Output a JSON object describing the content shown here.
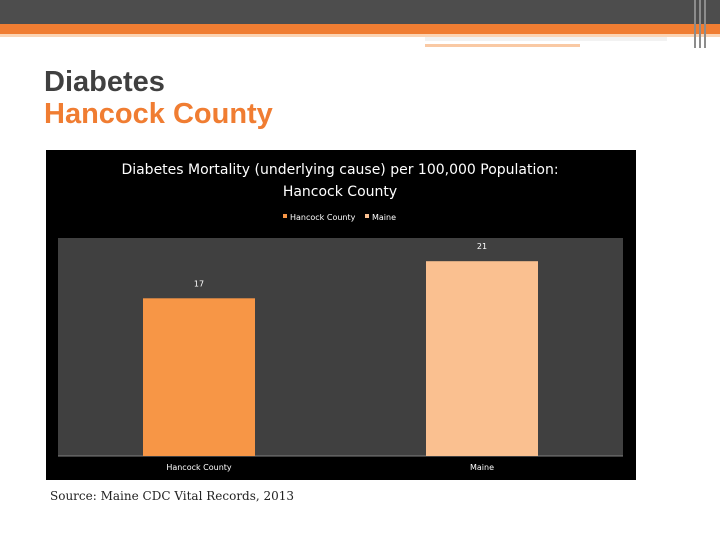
{
  "slide": {
    "title_line1": "Diabetes",
    "title_line2": "Hancock County",
    "source": "Source: Maine CDC Vital Records, 2013"
  },
  "colors": {
    "accent": "#f07d32",
    "dark_band": "#4d4d4d",
    "chart_bg": "#000000",
    "plot_bg": "#404040",
    "hancock": "#f79646",
    "maine": "#fac090"
  },
  "chart_data": {
    "type": "bar",
    "title_line1": "Diabetes Mortality (underlying cause) per 100,000 Population:",
    "title_line2": "Hancock County",
    "categories": [
      "Hancock County",
      "Maine"
    ],
    "values": [
      17,
      21
    ],
    "ylim": [
      0,
      23.5
    ],
    "legend": [
      "Hancock County",
      "Maine"
    ],
    "legend_position": "top",
    "grid": false,
    "data_labels": [
      "17",
      "21"
    ]
  }
}
